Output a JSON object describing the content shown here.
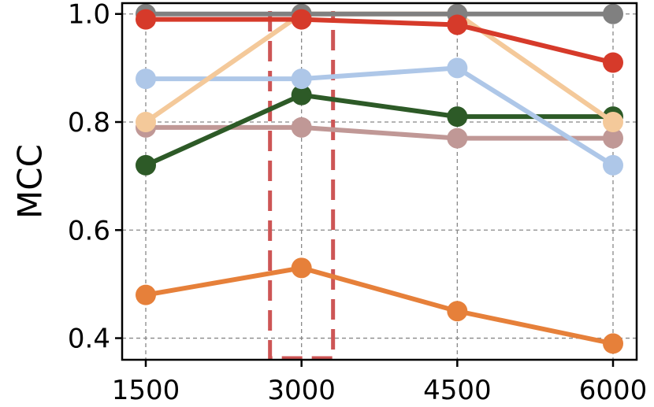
{
  "chart_data": {
    "type": "line",
    "title": "",
    "xlabel": "",
    "ylabel": "MCC",
    "x": [
      1500,
      3000,
      4500,
      6000
    ],
    "x_tick_labels": [
      "1500",
      "3000",
      "4500",
      "6000"
    ],
    "y_ticks": [
      0.4,
      0.6,
      0.8,
      1.0
    ],
    "y_tick_labels": [
      "0.4",
      "0.6",
      "0.8",
      "1.0"
    ],
    "xlim": [
      1500,
      6000
    ],
    "ylim": [
      0.36,
      1.02
    ],
    "grid": true,
    "highlight_x": 3000,
    "highlight_color": "#cd5555",
    "series": [
      {
        "color": "#e6803a",
        "values": [
          0.48,
          0.53,
          0.45,
          0.39
        ]
      },
      {
        "color": "#c09896",
        "values": [
          0.79,
          0.79,
          0.77,
          0.77
        ]
      },
      {
        "color": "#2d5a27",
        "values": [
          0.72,
          0.85,
          0.81,
          0.81
        ]
      },
      {
        "color": "#aec7e8",
        "values": [
          0.88,
          0.88,
          0.9,
          0.72
        ]
      },
      {
        "color": "#f4c99a",
        "values": [
          0.8,
          1.0,
          1.0,
          0.8
        ]
      },
      {
        "color": "#808080",
        "values": [
          1.0,
          1.0,
          1.0,
          1.0
        ]
      },
      {
        "color": "#d63a2a",
        "values": [
          0.99,
          0.99,
          0.98,
          0.91
        ]
      }
    ]
  }
}
